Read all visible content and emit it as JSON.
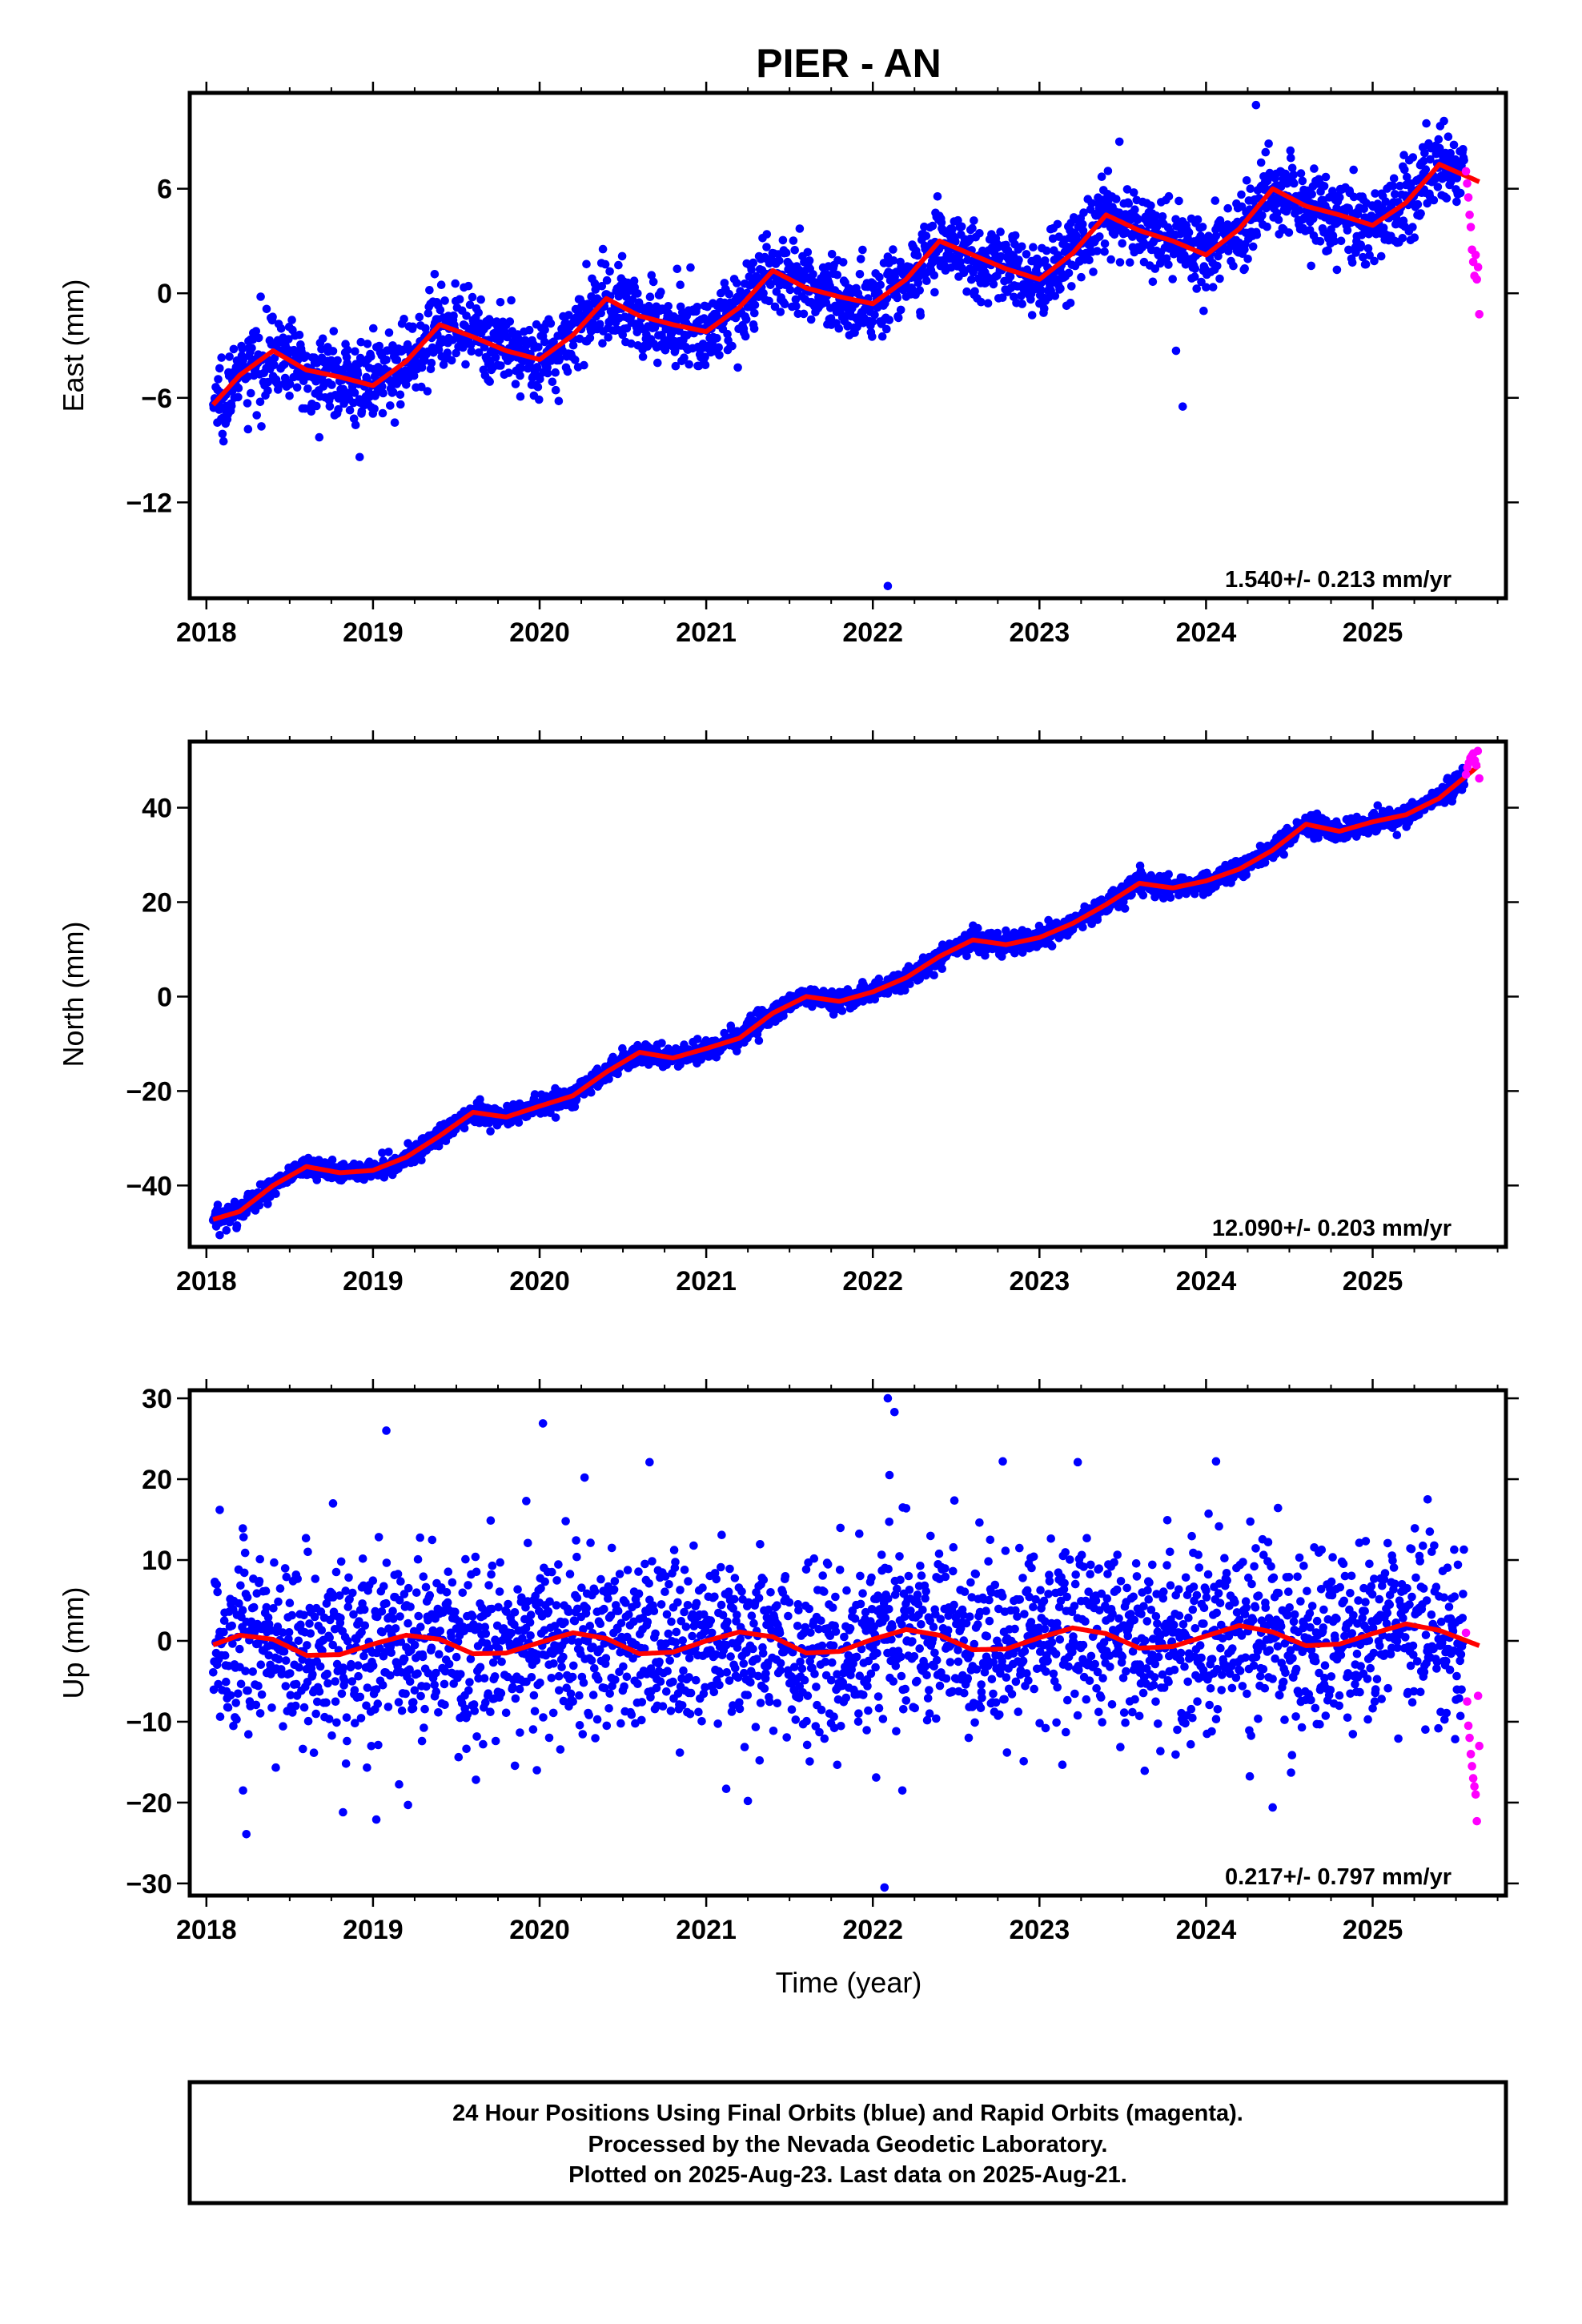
{
  "title": "PIER - AN",
  "xlabel": "Time (year)",
  "footer": {
    "line1": "24 Hour Positions Using Final Orbits (blue) and Rapid Orbits (magenta).",
    "line2": "Processed by the Nevada Geodetic Laboratory.",
    "line3": "Plotted on 2025-Aug-23. Last data on 2025-Aug-21."
  },
  "colors": {
    "final_orbits": "#0000ff",
    "rapid_orbits": "#ff00ff",
    "model_fit": "#ff0000",
    "frame": "#000000"
  },
  "chart_data": [
    {
      "type": "scatter",
      "component": "east",
      "ylabel": "East (mm)",
      "rate_label": "1.540+/- 0.213 mm/yr",
      "xlim": [
        2017.9,
        2025.8
      ],
      "ylim": [
        -17.5,
        11.5
      ],
      "xticks": [
        2018,
        2019,
        2020,
        2021,
        2022,
        2023,
        2024,
        2025
      ],
      "yticks": [
        -12,
        -6,
        0,
        6
      ],
      "series": [
        {
          "name": "Final Orbits (blue)",
          "noise_mm": 1.1,
          "t_start": 2018.04,
          "t_end": 2025.55
        },
        {
          "name": "Rapid Orbits (magenta)",
          "t_start": 2025.56,
          "t_end": 2025.64,
          "values_mm": [
            7,
            6.3,
            5.5,
            4.5,
            3.8,
            2.5,
            1.8,
            1,
            2.2,
            0.8,
            1.5,
            -1.2
          ]
        }
      ],
      "model_fit": {
        "x": [
          2018.04,
          2018.2,
          2018.4,
          2018.6,
          2018.8,
          2019.0,
          2019.2,
          2019.4,
          2019.6,
          2019.8,
          2020.0,
          2020.2,
          2020.4,
          2020.6,
          2020.8,
          2021.0,
          2021.2,
          2021.4,
          2021.6,
          2021.8,
          2022.0,
          2022.2,
          2022.4,
          2022.6,
          2022.8,
          2023.0,
          2023.2,
          2023.4,
          2023.6,
          2023.8,
          2024.0,
          2024.2,
          2024.4,
          2024.6,
          2024.8,
          2025.0,
          2025.2,
          2025.4,
          2025.64
        ],
        "y": [
          -6.4,
          -4.7,
          -3.3,
          -4.4,
          -4.8,
          -5.3,
          -3.9,
          -1.8,
          -2.5,
          -3.3,
          -3.8,
          -2.4,
          -0.3,
          -1.3,
          -1.8,
          -2.2,
          -0.8,
          1.3,
          0.3,
          -0.2,
          -0.6,
          0.8,
          3.0,
          2.2,
          1.4,
          0.8,
          2.3,
          4.5,
          3.6,
          3.0,
          2.2,
          3.7,
          6.0,
          5.0,
          4.5,
          3.9,
          5.2,
          7.4,
          6.4
        ]
      },
      "outliers": {
        "x": [
          2018.25,
          2022.09,
          2023.48,
          2023.82,
          2023.86,
          2024.3,
          2018.92,
          2019.37
        ],
        "y": [
          -7.8,
          -16.8,
          8.7,
          -3.3,
          -6.5,
          10.8,
          -9.4,
          1.1
        ]
      }
    },
    {
      "type": "scatter",
      "component": "north",
      "ylabel": "North (mm)",
      "rate_label": "12.090+/- 0.203 mm/yr",
      "xlim": [
        2017.9,
        2025.8
      ],
      "ylim": [
        -53,
        54
      ],
      "xticks": [
        2018,
        2019,
        2020,
        2021,
        2022,
        2023,
        2024,
        2025
      ],
      "yticks": [
        -40,
        -20,
        0,
        20,
        40
      ],
      "series": [
        {
          "name": "Final Orbits (blue)",
          "noise_mm": 1.1,
          "t_start": 2018.04,
          "t_end": 2025.55
        },
        {
          "name": "Rapid Orbits (magenta)",
          "t_start": 2025.56,
          "t_end": 2025.64,
          "values_mm": [
            47,
            48.5,
            49.5,
            50.5,
            51,
            51.5,
            50,
            49,
            52,
            46.2
          ]
        }
      ],
      "model_fit": {
        "x": [
          2018.04,
          2018.2,
          2018.4,
          2018.6,
          2018.8,
          2019.0,
          2019.2,
          2019.4,
          2019.6,
          2019.8,
          2020.0,
          2020.2,
          2020.4,
          2020.6,
          2020.8,
          2021.0,
          2021.2,
          2021.4,
          2021.6,
          2021.8,
          2022.0,
          2022.2,
          2022.4,
          2022.6,
          2022.8,
          2023.0,
          2023.2,
          2023.4,
          2023.6,
          2023.8,
          2024.0,
          2024.2,
          2024.4,
          2024.6,
          2024.8,
          2025.0,
          2025.2,
          2025.4,
          2025.64
        ],
        "y": [
          -47.2,
          -45.5,
          -40.0,
          -36.0,
          -37.3,
          -36.8,
          -34.0,
          -29.5,
          -24.5,
          -25.5,
          -23.2,
          -21.0,
          -16.0,
          -11.8,
          -13.0,
          -11.0,
          -8.8,
          -3.5,
          0.0,
          -1.0,
          1.0,
          4.0,
          8.5,
          12.0,
          11.0,
          12.5,
          15.5,
          19.5,
          24.0,
          23.0,
          24.5,
          27.0,
          31.0,
          36.5,
          35.0,
          37.0,
          38.5,
          42.0,
          49.0
        ]
      },
      "outliers": {
        "x": [
          2018.08,
          2018.12
        ],
        "y": [
          -50.5,
          -49.5
        ]
      }
    },
    {
      "type": "scatter",
      "component": "up",
      "ylabel": "Up (mm)",
      "rate_label": "0.217+/- 0.797 mm/yr",
      "xlim": [
        2017.9,
        2025.8
      ],
      "ylim": [
        -31.5,
        31
      ],
      "xticks": [
        2018,
        2019,
        2020,
        2021,
        2022,
        2023,
        2024,
        2025
      ],
      "yticks": [
        -30,
        -20,
        -10,
        0,
        10,
        20,
        30
      ],
      "series": [
        {
          "name": "Final Orbits (blue)",
          "noise_mm": 5.5,
          "t_start": 2018.04,
          "t_end": 2025.55
        },
        {
          "name": "Rapid Orbits (magenta)",
          "t_start": 2025.56,
          "t_end": 2025.64,
          "values_mm": [
            1,
            -7.5,
            -10.5,
            -12,
            -14,
            -15.5,
            -17,
            -18,
            -19,
            -22.3,
            -6.8,
            -13
          ]
        }
      ],
      "model_fit": {
        "x": [
          2018.04,
          2018.2,
          2018.4,
          2018.6,
          2018.8,
          2019.0,
          2019.2,
          2019.4,
          2019.6,
          2019.8,
          2020.0,
          2020.2,
          2020.4,
          2020.6,
          2020.8,
          2021.0,
          2021.2,
          2021.4,
          2021.6,
          2021.8,
          2022.0,
          2022.2,
          2022.4,
          2022.6,
          2022.8,
          2023.0,
          2023.2,
          2023.4,
          2023.6,
          2023.8,
          2024.0,
          2024.2,
          2024.4,
          2024.6,
          2024.8,
          2025.0,
          2025.2,
          2025.4,
          2025.64
        ],
        "y": [
          -0.5,
          0.7,
          0.2,
          -1.8,
          -1.7,
          -0.4,
          0.7,
          0.2,
          -1.6,
          -1.5,
          -0.2,
          1.0,
          0.3,
          -1.6,
          -1.4,
          0.0,
          1.1,
          0.5,
          -1.5,
          -1.3,
          0.2,
          1.4,
          0.7,
          -1.1,
          -1.0,
          0.4,
          1.6,
          0.9,
          -0.9,
          -0.7,
          0.6,
          1.9,
          1.1,
          -0.6,
          -0.4,
          0.9,
          2.1,
          1.3,
          -0.6
        ]
      },
      "outliers": {
        "x": [
          2018.08,
          2018.22,
          2018.24,
          2018.82,
          2019.02,
          2019.08,
          2019.21,
          2020.02,
          2020.27,
          2020.66,
          2021.12,
          2021.25,
          2022.02,
          2022.07,
          2022.09,
          2022.1,
          2022.13,
          2022.18,
          2022.2,
          2022.78,
          2023.23,
          2024.06,
          2024.4,
          2025.33,
          2018.76,
          2019.92
        ],
        "y": [
          16.2,
          -18.5,
          -23.9,
          -21.2,
          -22.1,
          26.0,
          -20.3,
          26.9,
          20.2,
          22.1,
          -18.3,
          -19.8,
          -16.9,
          -30.5,
          30.0,
          20.5,
          28.3,
          16.5,
          16.4,
          22.2,
          22.1,
          22.2,
          -20.6,
          17.5,
          17.0,
          17.3
        ]
      }
    }
  ]
}
